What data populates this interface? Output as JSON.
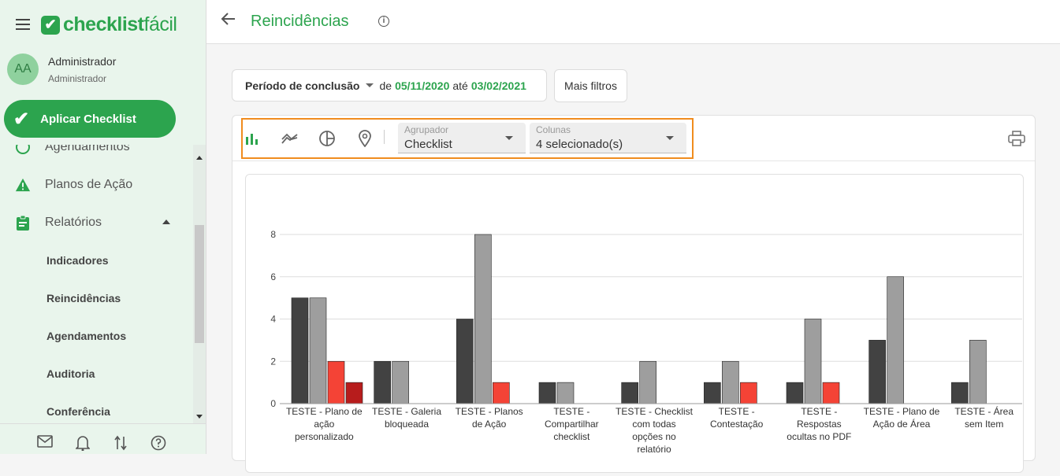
{
  "app": {
    "logo_mark": "✔",
    "logo_text_bold": "checklist",
    "logo_text_thin": "fácil"
  },
  "user": {
    "initials": "AA",
    "name": "Administrador",
    "role": "Administrador"
  },
  "sidebar": {
    "apply_button": "Aplicar Checklist",
    "items": [
      {
        "label": "Agendamentos",
        "icon": "calendar-icon"
      },
      {
        "label": "Planos de Ação",
        "icon": "warning-icon"
      },
      {
        "label": "Relatórios",
        "icon": "clipboard-icon"
      }
    ],
    "report_subitems": [
      "Indicadores",
      "Reincidências",
      "Agendamentos",
      "Auditoria",
      "Conferência"
    ],
    "bottom_icons": [
      "mail-icon",
      "bell-icon",
      "sync-icon",
      "help-icon"
    ]
  },
  "header": {
    "title": "Reincidências"
  },
  "filters": {
    "period_label": "Período de conclusão",
    "de": "de",
    "start_date": "05/11/2020",
    "ate": "até",
    "end_date": "03/02/2021",
    "more_filters": "Mais filtros"
  },
  "toolbar": {
    "grouping_label": "Agrupador",
    "grouping_value": "Checklist",
    "columns_label": "Colunas",
    "columns_value": "4 selecionado(s)"
  },
  "colors": {
    "brand": "#2ca44e",
    "highlight": "#f08c1e",
    "series": [
      "#424242",
      "#9e9e9e",
      "#f44336",
      "#b71c1c"
    ]
  },
  "chart_data": {
    "type": "bar",
    "categories": [
      [
        "TESTE - Plano de",
        "ação",
        "personalizado"
      ],
      [
        "TESTE - Galeria",
        "bloqueada"
      ],
      [
        "TESTE - Planos",
        "de Ação"
      ],
      [
        "TESTE -",
        "Compartilhar",
        "checklist"
      ],
      [
        "TESTE - Checklist",
        "com todas",
        "opções no",
        "relatório"
      ],
      [
        "TESTE -",
        "Contestação"
      ],
      [
        "TESTE -",
        "Respostas",
        "ocultas no PDF"
      ],
      [
        "TESTE - Plano de",
        "Ação de Área"
      ],
      [
        "TESTE - Área",
        "sem Item"
      ]
    ],
    "series": [
      {
        "values": [
          5,
          2,
          4,
          1,
          1,
          1,
          1,
          3,
          1
        ]
      },
      {
        "values": [
          5,
          2,
          8,
          1,
          2,
          2,
          4,
          6,
          3
        ]
      },
      {
        "values": [
          2,
          0,
          1,
          0,
          0,
          1,
          1,
          0,
          0
        ]
      },
      {
        "values": [
          1,
          0,
          0,
          0,
          0,
          0,
          0,
          0,
          0
        ]
      }
    ],
    "yticks": [
      "0",
      "2",
      "4",
      "6",
      "8"
    ],
    "ylim": [
      0,
      8
    ],
    "grid": true
  }
}
